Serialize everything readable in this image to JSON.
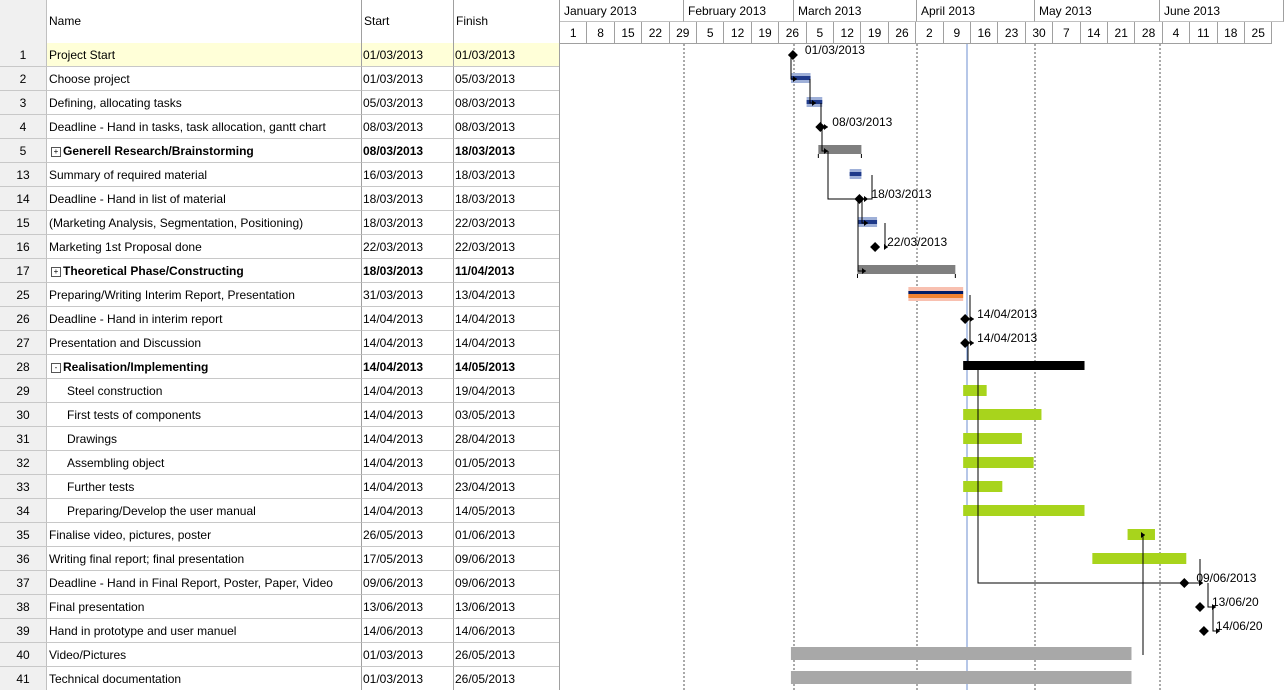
{
  "columns": {
    "num": "",
    "name": "Name",
    "start": "Start",
    "finish": "Finish"
  },
  "rows": [
    {
      "id": "1",
      "name": "Project Start",
      "start": "01/03/2013",
      "finish": "01/03/2013"
    },
    {
      "id": "2",
      "name": "Choose project",
      "start": "01/03/2013",
      "finish": "05/03/2013"
    },
    {
      "id": "3",
      "name": "Defining, allocating tasks",
      "start": "05/03/2013",
      "finish": "08/03/2013"
    },
    {
      "id": "4",
      "name": "Deadline - Hand in tasks, task allocation, gantt chart",
      "start": "08/03/2013",
      "finish": "08/03/2013"
    },
    {
      "id": "5",
      "name": "Generell Research/Brainstorming",
      "start": "08/03/2013",
      "finish": "18/03/2013"
    },
    {
      "id": "13",
      "name": "Summary of required material",
      "start": "16/03/2013",
      "finish": "18/03/2013"
    },
    {
      "id": "14",
      "name": "Deadline - Hand in list of material",
      "start": "18/03/2013",
      "finish": "18/03/2013"
    },
    {
      "id": "15",
      "name": "(Marketing Analysis, Segmentation, Positioning)",
      "start": "18/03/2013",
      "finish": "22/03/2013"
    },
    {
      "id": "16",
      "name": "Marketing 1st Proposal done",
      "start": "22/03/2013",
      "finish": "22/03/2013"
    },
    {
      "id": "17",
      "name": "Theoretical Phase/Constructing",
      "start": "18/03/2013",
      "finish": "11/04/2013"
    },
    {
      "id": "25",
      "name": "Preparing/Writing Interim Report, Presentation",
      "start": "31/03/2013",
      "finish": "13/04/2013"
    },
    {
      "id": "26",
      "name": "Deadline - Hand in interim report",
      "start": "14/04/2013",
      "finish": "14/04/2013"
    },
    {
      "id": "27",
      "name": "Presentation and Discussion",
      "start": "14/04/2013",
      "finish": "14/04/2013"
    },
    {
      "id": "28",
      "name": "Realisation/Implementing",
      "start": "14/04/2013",
      "finish": "14/05/2013"
    },
    {
      "id": "29",
      "name": "Steel construction",
      "start": "14/04/2013",
      "finish": "19/04/2013"
    },
    {
      "id": "30",
      "name": "First tests of components",
      "start": "14/04/2013",
      "finish": "03/05/2013"
    },
    {
      "id": "31",
      "name": "Drawings",
      "start": "14/04/2013",
      "finish": "28/04/2013"
    },
    {
      "id": "32",
      "name": "Assembling object",
      "start": "14/04/2013",
      "finish": "01/05/2013"
    },
    {
      "id": "33",
      "name": "Further tests",
      "start": "14/04/2013",
      "finish": "23/04/2013"
    },
    {
      "id": "34",
      "name": "Preparing/Develop the user manual",
      "start": "14/04/2013",
      "finish": "14/05/2013"
    },
    {
      "id": "35",
      "name": "Finalise video, pictures, poster",
      "start": "26/05/2013",
      "finish": "01/06/2013"
    },
    {
      "id": "36",
      "name": "Writing final report; final presentation",
      "start": "17/05/2013",
      "finish": "09/06/2013"
    },
    {
      "id": "37",
      "name": "Deadline - Hand in Final Report, Poster, Paper, Video",
      "start": "09/06/2013",
      "finish": "09/06/2013"
    },
    {
      "id": "38",
      "name": "Final presentation",
      "start": "13/06/2013",
      "finish": "13/06/2013"
    },
    {
      "id": "39",
      "name": "Hand in prototype and user manuel",
      "start": "14/06/2013",
      "finish": "14/06/2013"
    },
    {
      "id": "40",
      "name": "Video/Pictures",
      "start": "01/03/2013",
      "finish": "26/05/2013"
    },
    {
      "id": "41",
      "name": "Technical documentation",
      "start": "01/03/2013",
      "finish": "26/05/2013"
    }
  ],
  "timeline": {
    "months": [
      "January 2013",
      "February 2013",
      "March 2013",
      "April 2013",
      "May 2013",
      "June 2013"
    ],
    "weeks": [
      "1",
      "8",
      "15",
      "22",
      "29",
      "5",
      "12",
      "19",
      "26",
      "5",
      "12",
      "19",
      "26",
      "2",
      "9",
      "16",
      "23",
      "30",
      "7",
      "14",
      "21",
      "28",
      "4",
      "11",
      "18",
      "25"
    ]
  },
  "milestone_labels": {
    "r1": "01/03/2013",
    "r4": "08/03/2013",
    "r14": "18/03/2013",
    "r16": "22/03/2013",
    "r26": "14/04/2013",
    "r27": "14/04/2013",
    "r37": "09/06/2013",
    "r38": "13/06/20",
    "r39": "14/06/20"
  },
  "colors": {
    "summary_gray": "#7f7f7f",
    "summary_black": "#000000",
    "task_blue": "#1f3a8a",
    "task_lightblue": "#9fb0d8",
    "task_green": "#a8d41c",
    "task_gray": "#a8a8a8",
    "task_orange": "#f08030",
    "task_pink": "#f8c0b0",
    "selected_row": "#ffffd8",
    "today_line": "#6d8fd0"
  }
}
